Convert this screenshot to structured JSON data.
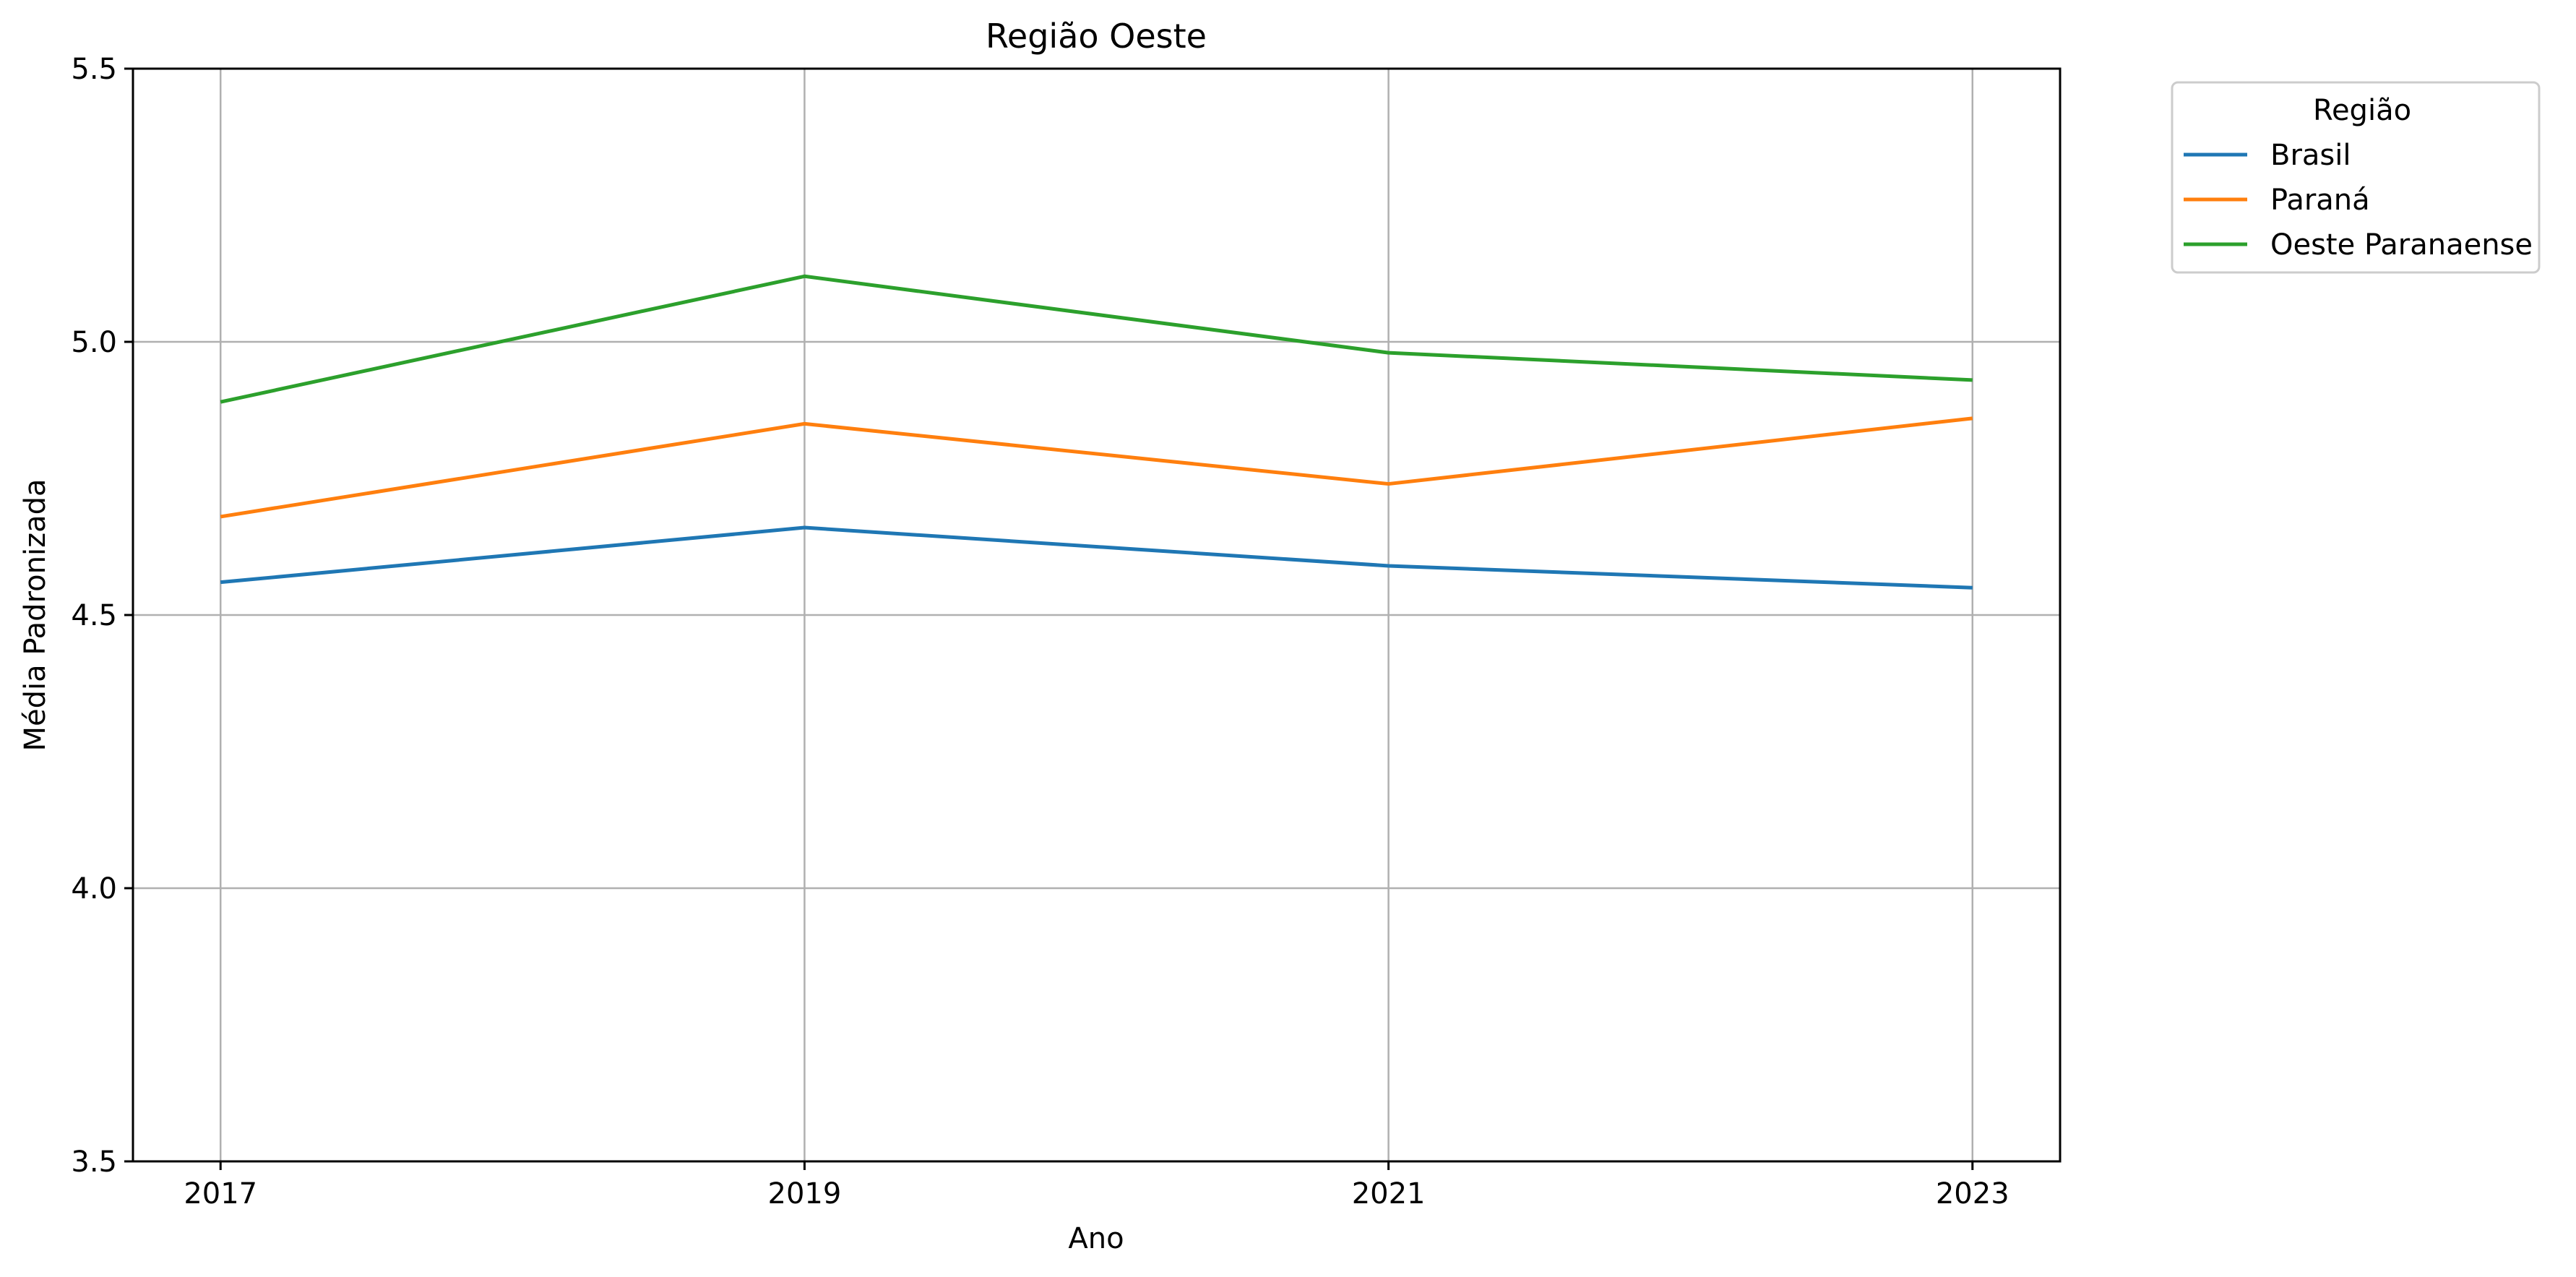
{
  "chart_data": {
    "type": "line",
    "title": "Região Oeste",
    "xlabel": "Ano",
    "ylabel": "Média Padronizada",
    "x": [
      2017,
      2019,
      2021,
      2023
    ],
    "x_tick_labels": [
      "2017",
      "2019",
      "2021",
      "2023"
    ],
    "xlim": [
      2016.7,
      2023.3
    ],
    "ylim": [
      3.5,
      5.5
    ],
    "y_ticks": [
      3.5,
      4.0,
      4.5,
      5.0,
      5.5
    ],
    "y_tick_labels": [
      "3.5",
      "4.0",
      "4.5",
      "5.0",
      "5.5"
    ],
    "grid": true,
    "legend": {
      "title": "Região",
      "placement": "outside-right-top"
    },
    "series": [
      {
        "name": "Brasil",
        "color": "#1f77b4",
        "values": [
          4.56,
          4.66,
          4.59,
          4.55
        ]
      },
      {
        "name": "Paraná",
        "color": "#ff7f0e",
        "values": [
          4.68,
          4.85,
          4.74,
          4.86
        ]
      },
      {
        "name": "Oeste Paranaense",
        "color": "#2ca02c",
        "values": [
          4.89,
          5.12,
          4.98,
          4.93
        ]
      }
    ]
  }
}
